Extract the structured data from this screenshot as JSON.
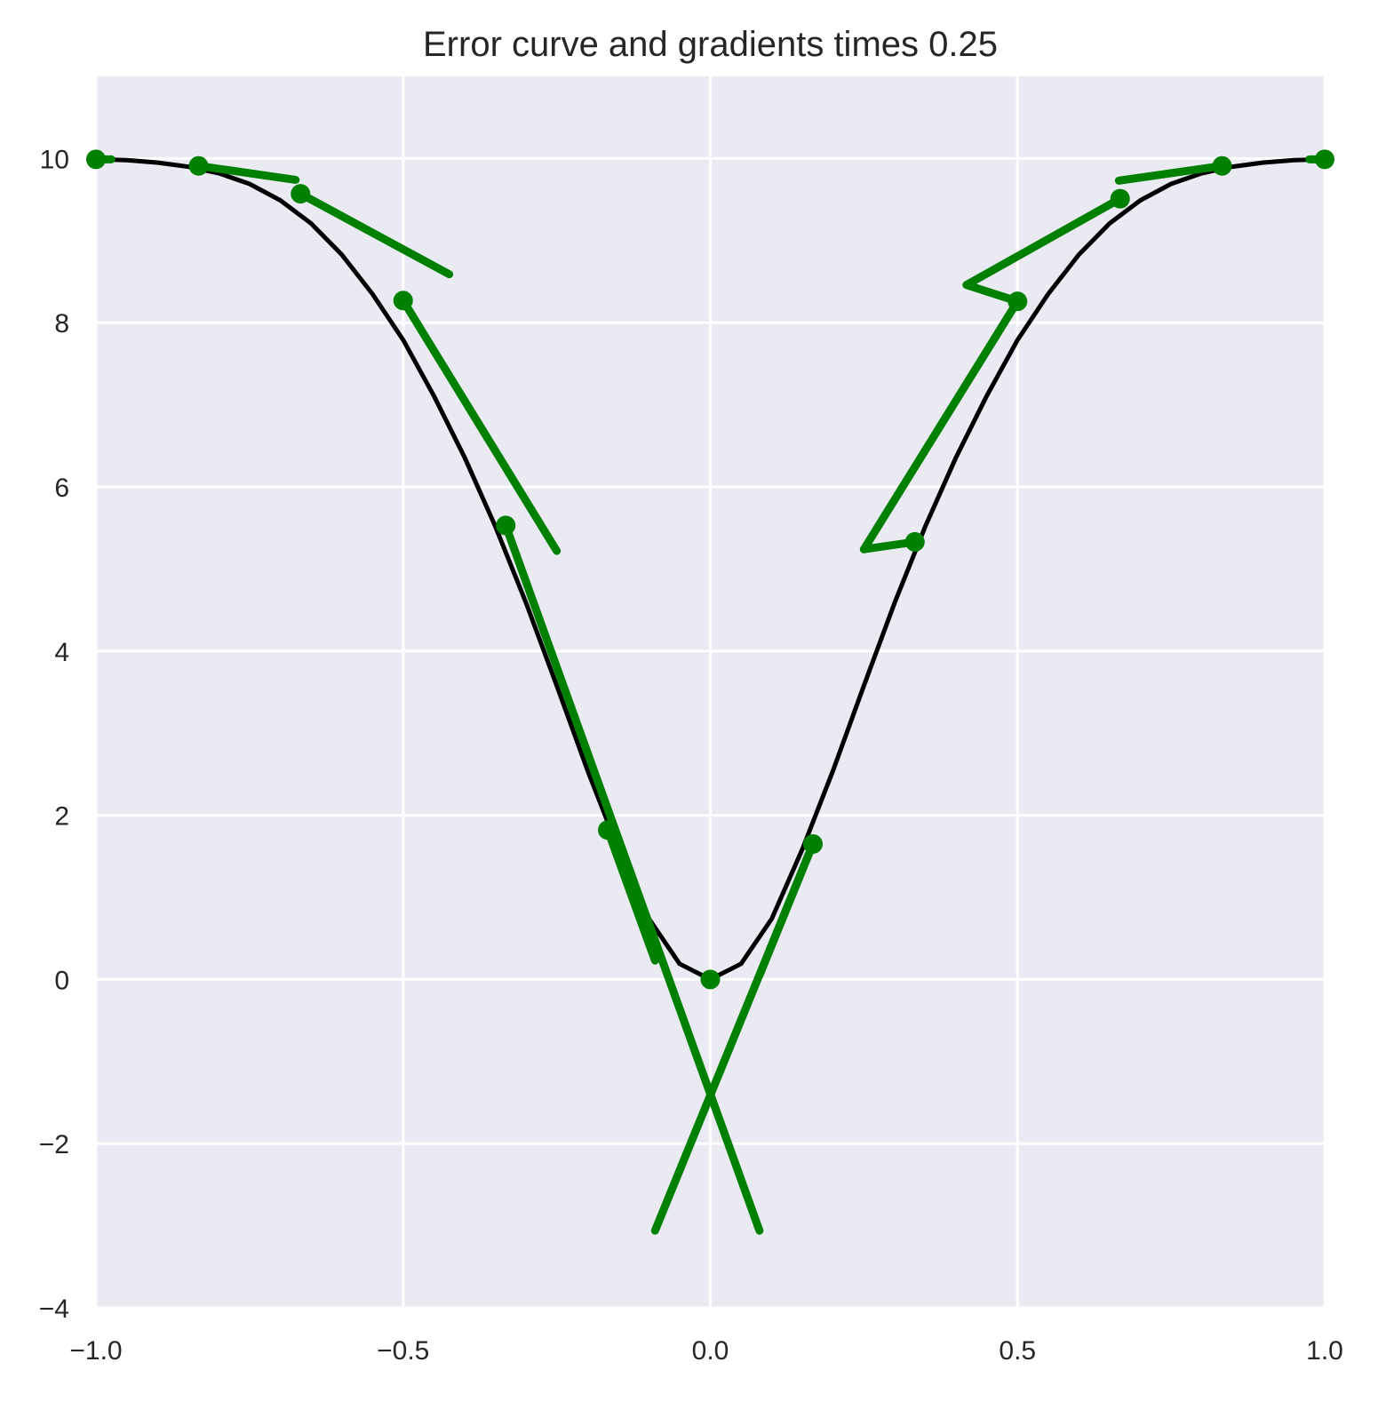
{
  "chart_data": {
    "type": "line",
    "title": "Error curve and gradients times 0.25",
    "xlabel": "",
    "ylabel": "",
    "xlim": [
      -1.0,
      1.0
    ],
    "ylim": [
      -4,
      11
    ],
    "grid": true,
    "legend": "none",
    "x_ticks": [
      -1.0,
      -0.5,
      0.0,
      0.5,
      1.0
    ],
    "x_tick_labels": [
      "−1.0",
      "−0.5",
      "0.0",
      "0.5",
      "1.0"
    ],
    "y_ticks": [
      -4,
      -2,
      0,
      2,
      4,
      6,
      8,
      10
    ],
    "y_tick_labels": [
      "−4",
      "−2",
      "0",
      "2",
      "4",
      "6",
      "8",
      "10"
    ],
    "colors": {
      "background": "#eaeaf2",
      "grid": "#ffffff",
      "curve": "#000000",
      "gradient": "#008000",
      "text": "#262626"
    },
    "curve_samples": {
      "x": [
        -1.0,
        -0.95,
        -0.9,
        -0.85,
        -0.8,
        -0.75,
        -0.7,
        -0.65,
        -0.6,
        -0.55,
        -0.5,
        -0.45,
        -0.4,
        -0.35,
        -0.3,
        -0.25,
        -0.2,
        -0.15,
        -0.1,
        -0.05,
        0.0,
        0.05,
        0.1,
        0.15,
        0.2,
        0.25,
        0.3,
        0.35,
        0.4,
        0.45,
        0.5,
        0.55,
        0.6,
        0.65,
        0.7,
        0.75,
        0.8,
        0.85,
        0.9,
        0.95,
        1.0
      ],
      "y": [
        9.99,
        9.98,
        9.95,
        9.9,
        9.82,
        9.69,
        9.49,
        9.21,
        8.83,
        8.35,
        7.79,
        7.11,
        6.36,
        5.52,
        4.59,
        3.58,
        2.55,
        1.59,
        0.74,
        0.19,
        0.0,
        0.19,
        0.74,
        1.59,
        2.55,
        3.58,
        4.59,
        5.52,
        6.36,
        7.11,
        7.79,
        8.35,
        8.83,
        9.21,
        9.49,
        9.69,
        9.82,
        9.9,
        9.95,
        9.98,
        9.99
      ]
    },
    "sample_points": {
      "x": [
        -1.0,
        -0.833,
        -0.667,
        -0.5,
        -0.333,
        -0.167,
        0.0,
        0.167,
        0.333,
        0.5,
        0.667,
        0.833,
        1.0
      ],
      "y": [
        9.99,
        9.91,
        9.57,
        8.27,
        5.53,
        1.82,
        0.0,
        1.65,
        5.33,
        8.26,
        9.51,
        9.91,
        9.99
      ]
    },
    "gradient_segments": [
      {
        "x": [
          -1.0,
          -0.975
        ],
        "y": [
          9.99,
          9.99
        ]
      },
      {
        "x": [
          -0.833,
          -0.675
        ],
        "y": [
          9.91,
          9.74
        ]
      },
      {
        "x": [
          -0.667,
          -0.425
        ],
        "y": [
          9.57,
          8.59
        ]
      },
      {
        "x": [
          -0.5,
          -0.25
        ],
        "y": [
          8.27,
          5.22
        ]
      },
      {
        "x": [
          -0.333,
          0.08
        ],
        "y": [
          5.53,
          -3.06
        ]
      },
      {
        "x": [
          -0.167,
          -0.09
        ],
        "y": [
          1.82,
          0.23
        ]
      },
      {
        "x": [
          0.0,
          0.0
        ],
        "y": [
          0.0,
          0.0
        ]
      },
      {
        "x": [
          0.167,
          -0.09
        ],
        "y": [
          1.65,
          -3.06
        ]
      },
      {
        "x": [
          0.167,
          0.08
        ],
        "y": [
          1.65,
          0.05
        ]
      },
      {
        "x": [
          0.333,
          0.25
        ],
        "y": [
          5.33,
          5.24
        ]
      },
      {
        "x": [
          0.5,
          0.25
        ],
        "y": [
          8.26,
          5.24
        ]
      },
      {
        "x": [
          0.5,
          0.417
        ],
        "y": [
          8.26,
          8.46
        ]
      },
      {
        "x": [
          0.667,
          0.417
        ],
        "y": [
          9.51,
          8.46
        ]
      },
      {
        "x": [
          0.833,
          0.665
        ],
        "y": [
          9.91,
          9.73
        ]
      },
      {
        "x": [
          1.0,
          0.975
        ],
        "y": [
          9.99,
          9.99
        ]
      }
    ]
  }
}
